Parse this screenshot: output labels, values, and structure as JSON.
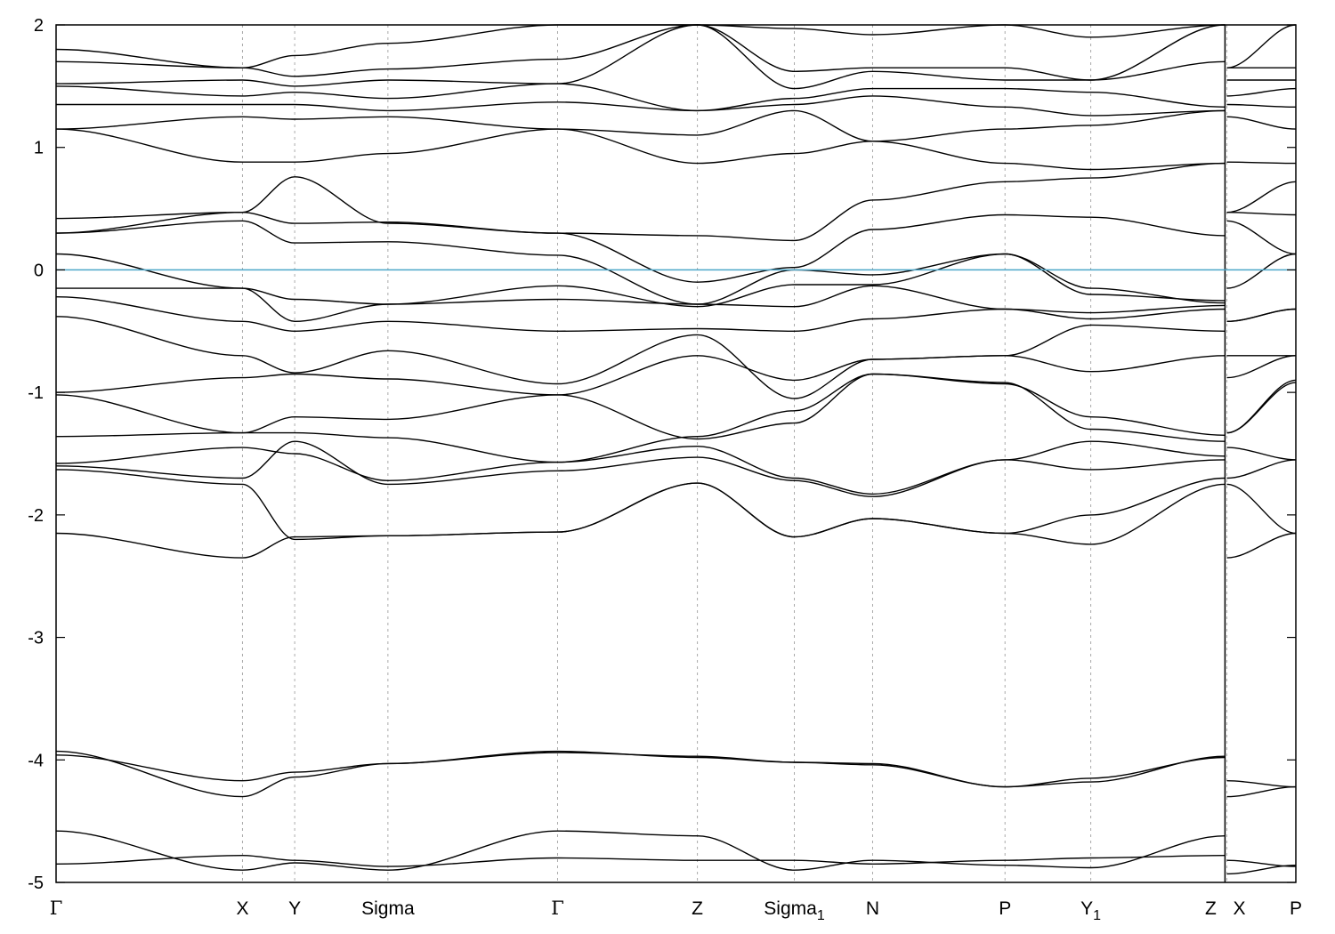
{
  "chart_data": {
    "type": "line",
    "title": "",
    "xlabel": "",
    "ylabel": "",
    "ylim": [
      -5,
      2
    ],
    "yticks": [
      -5,
      -4,
      -3,
      -2,
      -1,
      0,
      1,
      2
    ],
    "grid": "vertical dotted lines at high-symmetry points",
    "fermi_level": {
      "value": 0,
      "color": "#4ba6c9"
    },
    "band_color": "#000000",
    "kpoints": [
      {
        "label": "Γ",
        "sub": "",
        "x": 0.0
      },
      {
        "label": "X",
        "sub": "",
        "x": 1.0
      },
      {
        "label": "Y",
        "sub": "",
        "x": 1.28
      },
      {
        "label": "Sigma",
        "sub": "",
        "x": 1.78
      },
      {
        "label": "Γ",
        "sub": "",
        "x": 2.69
      },
      {
        "label": "Z",
        "sub": "",
        "x": 3.44
      },
      {
        "label": "Sigma",
        "sub": "1",
        "x": 3.96
      },
      {
        "label": "N",
        "sub": "",
        "x": 4.38
      },
      {
        "label": "P",
        "sub": "",
        "x": 5.09
      },
      {
        "label": "Y",
        "sub": "1",
        "x": 5.55
      },
      {
        "label": "Z",
        "sub": "",
        "x": 6.27
      },
      {
        "label": "X",
        "sub": "",
        "x": 6.28
      },
      {
        "label": "P",
        "sub": "",
        "x": 6.65
      }
    ],
    "segment_breaks": [
      6.27
    ],
    "series": [
      {
        "values": [
          -4.85,
          -4.78,
          -4.82,
          -4.87,
          -4.8,
          -4.82,
          -4.82,
          -4.85,
          -4.82,
          -4.8,
          -4.78,
          -4.82,
          -4.87
        ]
      },
      {
        "values": [
          -4.58,
          -4.9,
          -4.84,
          -4.9,
          -4.58,
          -4.62,
          -4.9,
          -4.82,
          -4.86,
          -4.88,
          -4.62,
          -4.93,
          -4.86
        ]
      },
      {
        "values": [
          -3.93,
          -4.3,
          -4.14,
          -4.03,
          -3.93,
          -3.98,
          -4.02,
          -4.03,
          -4.22,
          -4.15,
          -3.98,
          -4.3,
          -4.22
        ]
      },
      {
        "values": [
          -3.96,
          -4.17,
          -4.1,
          -4.03,
          -3.94,
          -3.97,
          -4.02,
          -4.04,
          -4.22,
          -4.18,
          -3.97,
          -4.17,
          -4.22
        ]
      },
      {
        "values": [
          -2.15,
          -2.35,
          -2.18,
          -2.17,
          -2.14,
          -1.74,
          -2.18,
          -2.03,
          -2.15,
          -2.24,
          -1.75,
          -2.35,
          -2.15
        ]
      },
      {
        "values": [
          -1.63,
          -1.75,
          -2.2,
          -2.17,
          -2.14,
          -1.74,
          -2.18,
          -2.03,
          -2.15,
          -2.0,
          -1.7,
          -1.75,
          -2.15
        ]
      },
      {
        "values": [
          -1.6,
          -1.7,
          -1.4,
          -1.75,
          -1.64,
          -1.53,
          -1.72,
          -1.85,
          -1.55,
          -1.63,
          -1.55,
          -1.7,
          -1.55
        ]
      },
      {
        "values": [
          -1.58,
          -1.45,
          -1.5,
          -1.72,
          -1.57,
          -1.44,
          -1.7,
          -1.83,
          -1.55,
          -1.4,
          -1.52,
          -1.45,
          -1.55
        ]
      },
      {
        "values": [
          -1.36,
          -1.33,
          -1.33,
          -1.37,
          -1.57,
          -1.36,
          -1.15,
          -0.85,
          -0.92,
          -1.3,
          -1.4,
          -1.33,
          -0.9
        ]
      },
      {
        "values": [
          -1.02,
          -1.33,
          -1.2,
          -1.22,
          -1.02,
          -1.38,
          -1.25,
          -0.85,
          -0.93,
          -1.2,
          -1.35,
          -1.33,
          -0.92
        ]
      },
      {
        "values": [
          -1.0,
          -0.88,
          -0.85,
          -0.89,
          -1.02,
          -0.7,
          -0.9,
          -0.73,
          -0.7,
          -0.83,
          -0.7,
          -0.88,
          -0.7
        ]
      },
      {
        "values": [
          -0.38,
          -0.7,
          -0.84,
          -0.66,
          -0.93,
          -0.53,
          -1.05,
          -0.73,
          -0.7,
          -0.45,
          -0.5,
          -0.7,
          -0.7
        ]
      },
      {
        "values": [
          -0.22,
          -0.42,
          -0.5,
          -0.42,
          -0.5,
          -0.48,
          -0.5,
          -0.4,
          -0.32,
          -0.4,
          -0.32,
          -0.42,
          -0.32
        ]
      },
      {
        "values": [
          -0.15,
          -0.15,
          -0.42,
          -0.28,
          -0.24,
          -0.28,
          -0.3,
          -0.13,
          -0.32,
          -0.35,
          -0.29,
          -0.42,
          -0.32
        ]
      },
      {
        "values": [
          0.13,
          -0.15,
          -0.24,
          -0.28,
          -0.13,
          -0.3,
          -0.12,
          -0.12,
          0.13,
          -0.15,
          -0.27,
          -0.15,
          0.13
        ]
      },
      {
        "values": [
          0.3,
          0.4,
          0.22,
          0.23,
          0.12,
          -0.28,
          0.0,
          -0.04,
          0.13,
          -0.2,
          -0.25,
          0.4,
          0.13
        ]
      },
      {
        "values": [
          0.3,
          0.47,
          0.38,
          0.39,
          0.3,
          -0.1,
          0.02,
          0.33,
          0.45,
          0.43,
          0.28,
          0.47,
          0.45
        ]
      },
      {
        "values": [
          0.42,
          0.47,
          0.76,
          0.38,
          0.3,
          0.28,
          0.24,
          0.57,
          0.72,
          0.75,
          0.87,
          0.47,
          0.72
        ]
      },
      {
        "values": [
          1.15,
          0.88,
          0.88,
          0.95,
          1.15,
          0.87,
          0.95,
          1.05,
          0.87,
          0.82,
          0.87,
          0.88,
          0.87
        ]
      },
      {
        "values": [
          1.15,
          1.25,
          1.23,
          1.25,
          1.15,
          1.1,
          1.3,
          1.05,
          1.15,
          1.18,
          1.3,
          1.25,
          1.15
        ]
      },
      {
        "values": [
          1.35,
          1.35,
          1.35,
          1.3,
          1.37,
          1.3,
          1.35,
          1.42,
          1.33,
          1.26,
          1.3,
          1.35,
          1.33
        ]
      },
      {
        "values": [
          1.5,
          1.42,
          1.45,
          1.4,
          1.52,
          1.3,
          1.4,
          1.48,
          1.48,
          1.45,
          1.33,
          1.42,
          1.48
        ]
      },
      {
        "values": [
          1.52,
          1.55,
          1.5,
          1.55,
          1.52,
          2.0,
          1.48,
          1.62,
          1.55,
          1.55,
          1.7,
          1.55,
          1.55
        ]
      },
      {
        "values": [
          1.7,
          1.65,
          1.58,
          1.64,
          1.72,
          2.0,
          1.62,
          1.65,
          1.65,
          1.55,
          2.0,
          1.65,
          1.65
        ]
      },
      {
        "values": [
          1.8,
          1.65,
          1.75,
          1.85,
          2.0,
          2.0,
          1.97,
          1.92,
          2.0,
          1.9,
          2.0,
          1.65,
          2.0
        ]
      }
    ]
  }
}
